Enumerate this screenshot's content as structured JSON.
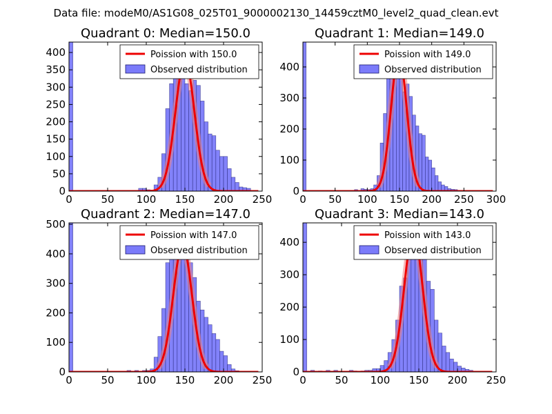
{
  "suptitle": "Data file: modeM0/AS1G08_025T01_9000002130_14459cztM0_level2_quad_clean.evt",
  "colors": {
    "bar_fill": "#7b7bfa",
    "bar_edge": "#1c1c6e",
    "poisson_line": "#ee0000",
    "poisson_peak": "#f08080"
  },
  "chart_data": [
    {
      "type": "bar",
      "title": "Quadrant 0: Median=150.0",
      "median": 150.0,
      "xlim": [
        0,
        250
      ],
      "ylim": [
        0,
        430
      ],
      "xticks": [
        0,
        50,
        100,
        150,
        200,
        250
      ],
      "yticks": [
        0,
        50,
        100,
        150,
        200,
        250,
        300,
        350,
        400
      ],
      "bin_width": 5,
      "first_bin": {
        "x": 0,
        "value": 430
      },
      "bins": [
        [
          90,
          8
        ],
        [
          95,
          8
        ],
        [
          100,
          4
        ],
        [
          105,
          3
        ],
        [
          110,
          18
        ],
        [
          115,
          40
        ],
        [
          120,
          108
        ],
        [
          125,
          238
        ],
        [
          130,
          310
        ],
        [
          135,
          380
        ],
        [
          140,
          355
        ],
        [
          145,
          340
        ],
        [
          150,
          310
        ],
        [
          155,
          290
        ],
        [
          160,
          320
        ],
        [
          165,
          305
        ],
        [
          170,
          260
        ],
        [
          175,
          200
        ],
        [
          180,
          165
        ],
        [
          185,
          160
        ],
        [
          190,
          118
        ],
        [
          195,
          100
        ],
        [
          200,
          100
        ],
        [
          205,
          65
        ],
        [
          210,
          40
        ],
        [
          215,
          25
        ],
        [
          220,
          12
        ],
        [
          225,
          10
        ],
        [
          230,
          8
        ]
      ],
      "legend": [
        "Poission with 150.0",
        "Observed distribution"
      ]
    },
    {
      "type": "bar",
      "title": "Quadrant 1: Median=149.0",
      "median": 149.0,
      "xlim": [
        0,
        300
      ],
      "ylim": [
        0,
        480
      ],
      "xticks": [
        0,
        50,
        100,
        150,
        200,
        250,
        300
      ],
      "yticks": [
        0,
        100,
        200,
        300,
        400
      ],
      "bin_width": 5,
      "first_bin": {
        "x": 0,
        "value": 480
      },
      "bins": [
        [
          80,
          5
        ],
        [
          90,
          8
        ],
        [
          95,
          6
        ],
        [
          100,
          5
        ],
        [
          105,
          8
        ],
        [
          110,
          20
        ],
        [
          115,
          50
        ],
        [
          120,
          155
        ],
        [
          125,
          250
        ],
        [
          130,
          420
        ],
        [
          135,
          405
        ],
        [
          140,
          440
        ],
        [
          145,
          395
        ],
        [
          150,
          370
        ],
        [
          155,
          320
        ],
        [
          160,
          345
        ],
        [
          165,
          305
        ],
        [
          170,
          245
        ],
        [
          175,
          210
        ],
        [
          180,
          185
        ],
        [
          185,
          180
        ],
        [
          190,
          110
        ],
        [
          195,
          100
        ],
        [
          200,
          75
        ],
        [
          205,
          50
        ],
        [
          210,
          30
        ],
        [
          215,
          20
        ],
        [
          220,
          15
        ],
        [
          225,
          8
        ],
        [
          230,
          6
        ],
        [
          235,
          5
        ]
      ],
      "legend": [
        "Poission with 149.0",
        "Observed distribution"
      ]
    },
    {
      "type": "bar",
      "title": "Quadrant 2: Median=147.0",
      "median": 147.0,
      "xlim": [
        0,
        250
      ],
      "ylim": [
        0,
        505
      ],
      "xticks": [
        0,
        50,
        100,
        150,
        200,
        250
      ],
      "yticks": [
        0,
        100,
        200,
        300,
        400,
        500
      ],
      "bin_width": 5,
      "first_bin": {
        "x": 0,
        "value": 505
      },
      "bins": [
        [
          75,
          5
        ],
        [
          85,
          5
        ],
        [
          95,
          5
        ],
        [
          100,
          5
        ],
        [
          105,
          10
        ],
        [
          110,
          50
        ],
        [
          115,
          120
        ],
        [
          120,
          215
        ],
        [
          125,
          370
        ],
        [
          130,
          420
        ],
        [
          135,
          390
        ],
        [
          140,
          430
        ],
        [
          145,
          410
        ],
        [
          150,
          390
        ],
        [
          155,
          370
        ],
        [
          160,
          320
        ],
        [
          165,
          240
        ],
        [
          170,
          210
        ],
        [
          175,
          185
        ],
        [
          180,
          160
        ],
        [
          185,
          130
        ],
        [
          190,
          110
        ],
        [
          195,
          70
        ],
        [
          200,
          55
        ],
        [
          205,
          25
        ],
        [
          210,
          10
        ],
        [
          215,
          4
        ],
        [
          220,
          2
        ]
      ],
      "legend": [
        "Poission with 147.0",
        "Observed distribution"
      ]
    },
    {
      "type": "bar",
      "title": "Quadrant 3: Median=143.0",
      "median": 143.0,
      "xlim": [
        0,
        250
      ],
      "ylim": [
        0,
        460
      ],
      "xticks": [
        0,
        50,
        100,
        150,
        200,
        250
      ],
      "yticks": [
        0,
        100,
        200,
        300,
        400
      ],
      "bin_width": 5,
      "first_bin": {
        "x": 0,
        "value": 460
      },
      "bins": [
        [
          10,
          5
        ],
        [
          20,
          3
        ],
        [
          30,
          5
        ],
        [
          40,
          5
        ],
        [
          60,
          5
        ],
        [
          65,
          3
        ],
        [
          75,
          3
        ],
        [
          80,
          5
        ],
        [
          85,
          5
        ],
        [
          90,
          10
        ],
        [
          95,
          10
        ],
        [
          100,
          20
        ],
        [
          105,
          35
        ],
        [
          110,
          60
        ],
        [
          115,
          100
        ],
        [
          120,
          160
        ],
        [
          125,
          265
        ],
        [
          130,
          290
        ],
        [
          135,
          360
        ],
        [
          140,
          410
        ],
        [
          145,
          410
        ],
        [
          150,
          430
        ],
        [
          155,
          370
        ],
        [
          160,
          280
        ],
        [
          165,
          255
        ],
        [
          170,
          160
        ],
        [
          175,
          120
        ],
        [
          180,
          80
        ],
        [
          185,
          60
        ],
        [
          190,
          40
        ],
        [
          195,
          30
        ],
        [
          200,
          18
        ],
        [
          205,
          12
        ],
        [
          210,
          8
        ],
        [
          215,
          5
        ]
      ],
      "legend": [
        "Poission with 143.0",
        "Observed distribution"
      ]
    }
  ]
}
